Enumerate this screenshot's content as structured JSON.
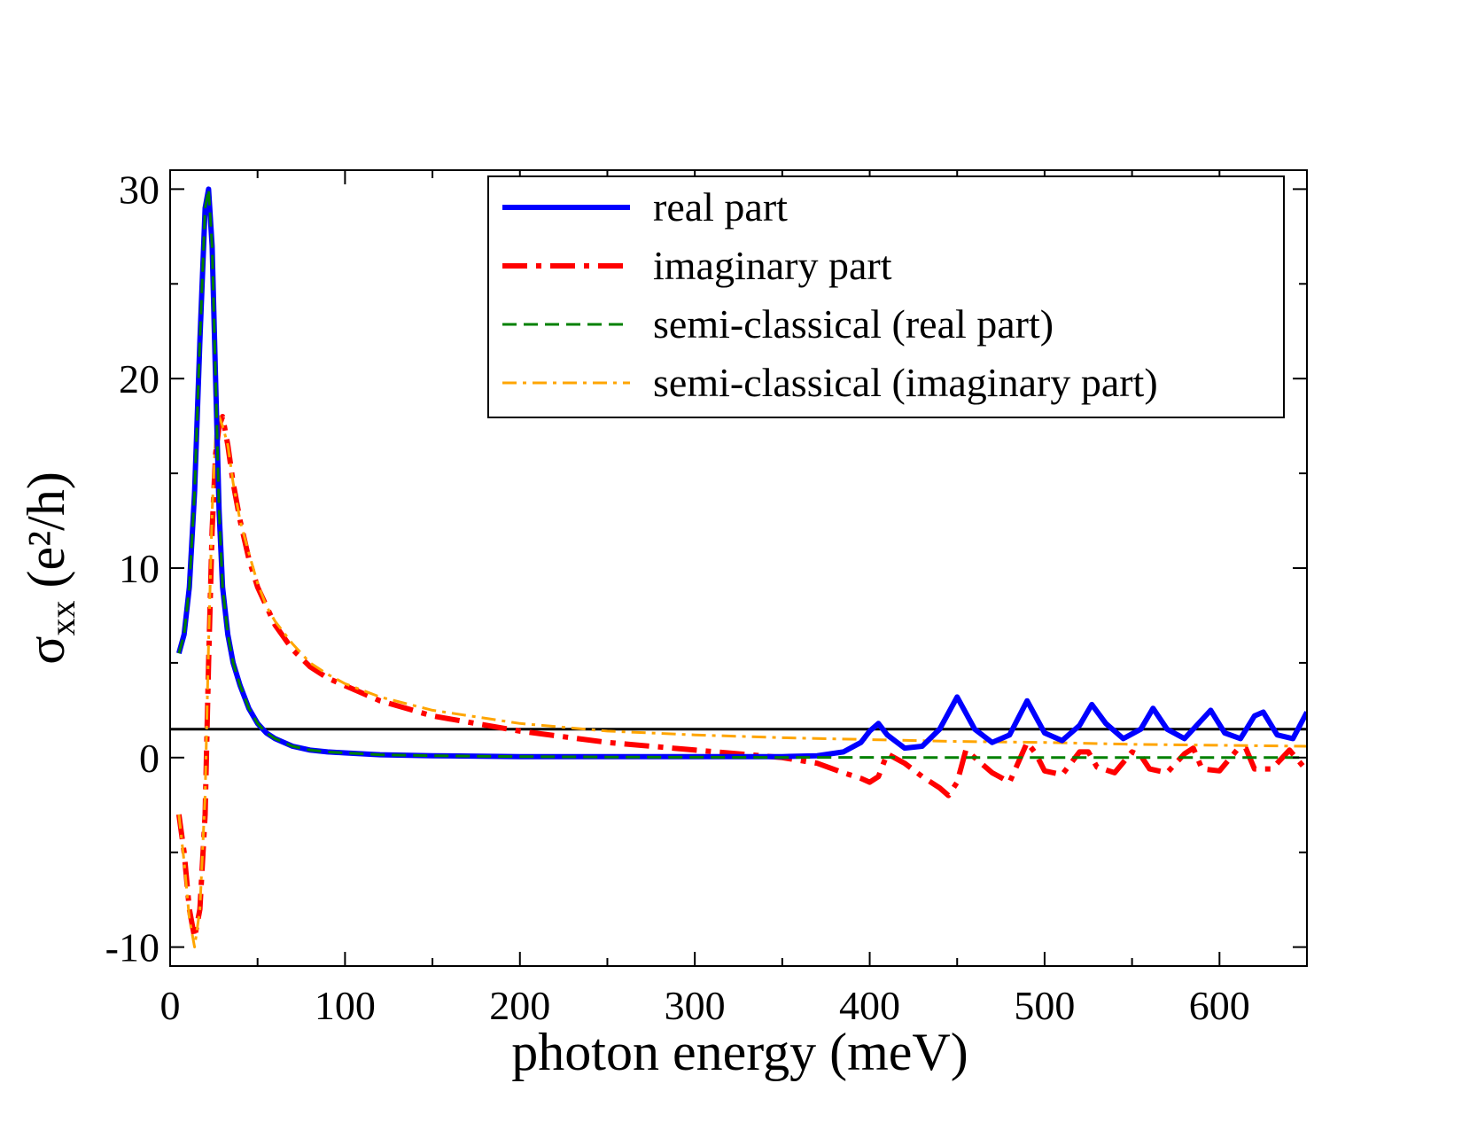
{
  "chart_data": {
    "type": "line",
    "title": "",
    "xlabel": "photon energy (meV)",
    "ylabel_symbol": "σ",
    "ylabel_subscript": "xx",
    "ylabel_units": "(e²/h)",
    "xlim": [
      0,
      650
    ],
    "ylim": [
      -11,
      31
    ],
    "x_ticks": [
      0,
      100,
      200,
      300,
      400,
      500,
      600
    ],
    "x_tick_labels": [
      "0",
      "100",
      "200",
      "300",
      "400",
      "500",
      "600"
    ],
    "y_ticks": [
      -10,
      0,
      10,
      20,
      30
    ],
    "y_tick_labels": [
      "-10",
      "0",
      "10",
      "20",
      "30"
    ],
    "grid": false,
    "legend_position": "top-right",
    "reference_line": {
      "y": 1.5,
      "color": "#000000"
    },
    "series": [
      {
        "name": "real part",
        "color": "#0000ff",
        "style": "solid",
        "x": [
          5,
          8,
          11,
          14,
          17,
          20,
          22,
          24,
          26,
          28,
          30,
          33,
          36,
          40,
          45,
          50,
          55,
          60,
          70,
          80,
          90,
          100,
          120,
          150,
          200,
          250,
          300,
          350,
          370,
          385,
          395,
          400,
          405,
          410,
          420,
          430,
          440,
          450,
          460,
          470,
          480,
          490,
          500,
          510,
          520,
          527,
          535,
          545,
          555,
          562,
          570,
          580,
          590,
          595,
          603,
          612,
          620,
          625,
          633,
          642,
          650
        ],
        "y": [
          5.5,
          6.5,
          9.0,
          14.0,
          22.0,
          29.0,
          30.0,
          27.0,
          20.0,
          13.0,
          9.0,
          6.5,
          5.0,
          3.8,
          2.6,
          1.8,
          1.3,
          1.0,
          0.6,
          0.4,
          0.3,
          0.25,
          0.15,
          0.1,
          0.05,
          0.05,
          0.05,
          0.05,
          0.1,
          0.3,
          0.8,
          1.4,
          1.8,
          1.2,
          0.5,
          0.6,
          1.5,
          3.2,
          1.5,
          0.8,
          1.2,
          3.0,
          1.3,
          0.9,
          1.7,
          2.8,
          1.8,
          1.0,
          1.5,
          2.6,
          1.5,
          1.0,
          2.0,
          2.5,
          1.3,
          1.0,
          2.2,
          2.4,
          1.2,
          1.0,
          2.4
        ]
      },
      {
        "name": "imaginary part",
        "color": "#ff0000",
        "style": "dash-dot",
        "x": [
          5,
          8,
          11,
          14,
          17,
          20,
          22,
          24,
          26,
          28,
          30,
          33,
          36,
          40,
          45,
          50,
          55,
          60,
          70,
          80,
          90,
          100,
          120,
          150,
          200,
          250,
          300,
          350,
          370,
          385,
          395,
          400,
          405,
          410,
          420,
          430,
          440,
          445,
          450,
          455,
          460,
          470,
          480,
          490,
          495,
          500,
          510,
          520,
          525,
          530,
          540,
          550,
          555,
          560,
          570,
          580,
          585,
          590,
          600,
          610,
          615,
          620,
          630,
          640,
          650
        ],
        "y": [
          -3.0,
          -5.0,
          -8.0,
          -9.5,
          -8.0,
          -3.0,
          5.0,
          12.0,
          16.0,
          17.5,
          18.0,
          16.5,
          14.5,
          12.5,
          10.5,
          9.0,
          8.0,
          7.0,
          5.7,
          4.8,
          4.2,
          3.8,
          3.0,
          2.2,
          1.4,
          0.8,
          0.4,
          0.0,
          -0.3,
          -0.8,
          -1.1,
          -1.3,
          -1.0,
          0.2,
          -0.3,
          -1.0,
          -1.6,
          -2.0,
          -1.3,
          0.4,
          0.0,
          -0.8,
          -1.3,
          0.8,
          0.2,
          -0.7,
          -0.9,
          0.3,
          0.3,
          -0.5,
          -0.8,
          0.3,
          0.1,
          -0.6,
          -0.8,
          0.2,
          0.5,
          -0.6,
          -0.7,
          0.4,
          0.5,
          -0.6,
          -0.6,
          0.4,
          -0.7
        ]
      },
      {
        "name": "semi-classical (real part)",
        "color": "#008000",
        "style": "dashed",
        "x": [
          5,
          8,
          11,
          14,
          17,
          20,
          22,
          24,
          26,
          28,
          30,
          33,
          36,
          40,
          45,
          50,
          55,
          60,
          70,
          80,
          90,
          100,
          120,
          150,
          200,
          250,
          300,
          350,
          400,
          450,
          500,
          550,
          600,
          650
        ],
        "y": [
          5.5,
          6.5,
          9.0,
          14.0,
          22.0,
          29.0,
          30.0,
          27.0,
          20.0,
          13.0,
          9.0,
          6.5,
          5.0,
          3.8,
          2.6,
          1.8,
          1.3,
          1.0,
          0.6,
          0.4,
          0.3,
          0.25,
          0.15,
          0.1,
          0.05,
          0.03,
          0.02,
          0.01,
          0.01,
          0.0,
          0.0,
          0.0,
          0.0,
          0.0
        ]
      },
      {
        "name": "semi-classical (imaginary part)",
        "color": "#ffa500",
        "style": "dash-dot-thin",
        "x": [
          5,
          8,
          11,
          14,
          17,
          20,
          22,
          24,
          26,
          28,
          30,
          33,
          36,
          40,
          45,
          50,
          55,
          60,
          70,
          80,
          90,
          100,
          120,
          150,
          200,
          250,
          300,
          350,
          400,
          450,
          500,
          550,
          600,
          650
        ],
        "y": [
          -3.0,
          -5.5,
          -8.5,
          -10.0,
          -8.0,
          -2.0,
          6.0,
          13.0,
          17.0,
          18.0,
          17.5,
          16.5,
          14.5,
          12.5,
          10.8,
          9.2,
          8.0,
          7.2,
          6.0,
          5.0,
          4.4,
          3.9,
          3.2,
          2.5,
          1.8,
          1.4,
          1.2,
          1.05,
          0.95,
          0.85,
          0.8,
          0.7,
          0.65,
          0.6
        ]
      }
    ]
  }
}
